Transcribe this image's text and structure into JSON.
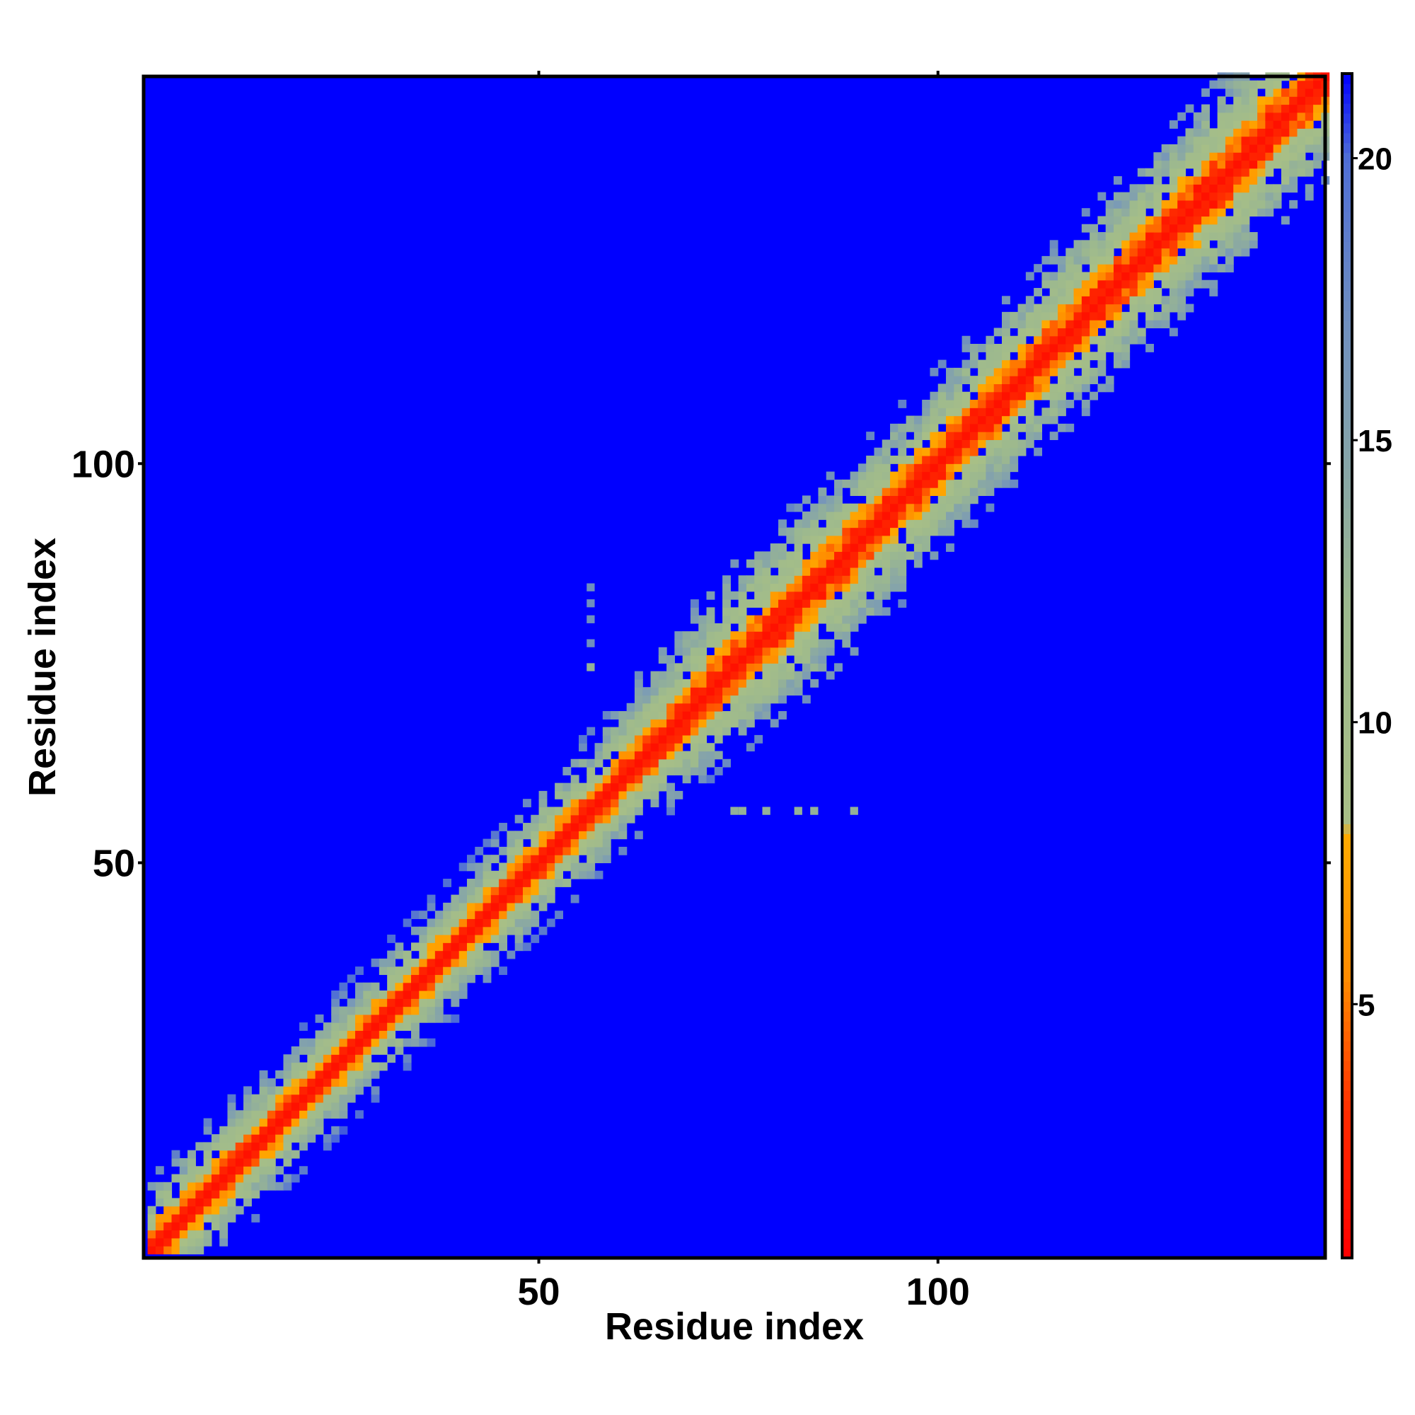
{
  "chart_data": {
    "type": "heatmap",
    "title": "",
    "xlabel": "Residue index",
    "ylabel": "Residue index",
    "n_residues": 148,
    "xlim": [
      1,
      148
    ],
    "ylim": [
      1,
      148
    ],
    "x_ticks": [
      50,
      100
    ],
    "y_ticks": [
      50,
      100
    ],
    "colorbar": {
      "ticks": [
        5,
        10,
        15,
        20
      ],
      "range": [
        0.5,
        21.5
      ],
      "stops": [
        {
          "value": 0.5,
          "color": "#ff0000"
        },
        {
          "value": 3.0,
          "color": "#ff2a00"
        },
        {
          "value": 5.5,
          "color": "#ff8c00"
        },
        {
          "value": 8.0,
          "color": "#ffaa00"
        },
        {
          "value": 8.2,
          "color": "#a8bf86"
        },
        {
          "value": 12.0,
          "color": "#9db98e"
        },
        {
          "value": 16.0,
          "color": "#7a9ab6"
        },
        {
          "value": 20.0,
          "color": "#4f6ed6"
        },
        {
          "value": 21.5,
          "color": "#0000ff"
        }
      ]
    },
    "colors": {
      "background": "#0000ff",
      "contact_core": "#ff0000",
      "contact_near": "#ff8c00",
      "mid_range": "#9db98e",
      "far_range": "#6f8fbf"
    },
    "band_profile": {
      "description_of_values": "distance value as function of |i-j| offset from the diagonal",
      "offsets": [
        0,
        1,
        2,
        3,
        4,
        5,
        6,
        8,
        10,
        12
      ],
      "values": [
        1.5,
        2.5,
        4.5,
        7.0,
        9.5,
        10.5,
        12.0,
        14.5,
        17.5,
        21.5
      ]
    },
    "band_halfwidth_by_position": [
      {
        "at": 1,
        "halfwidth": 8
      },
      {
        "at": 20,
        "halfwidth": 7
      },
      {
        "at": 40,
        "halfwidth": 7
      },
      {
        "at": 60,
        "halfwidth": 8
      },
      {
        "at": 80,
        "halfwidth": 12
      },
      {
        "at": 100,
        "halfwidth": 10
      },
      {
        "at": 120,
        "halfwidth": 11
      },
      {
        "at": 140,
        "halfwidth": 12
      },
      {
        "at": 148,
        "halfwidth": 10
      }
    ],
    "isolated_contacts": [
      {
        "i": 56,
        "j": 84,
        "value": 17
      },
      {
        "i": 56,
        "j": 82,
        "value": 17
      },
      {
        "i": 56,
        "j": 80,
        "value": 17
      },
      {
        "i": 56,
        "j": 77,
        "value": 17
      },
      {
        "i": 56,
        "j": 74,
        "value": 13
      },
      {
        "i": 74,
        "j": 56,
        "value": 13
      },
      {
        "i": 75,
        "j": 56,
        "value": 13
      },
      {
        "i": 78,
        "j": 56,
        "value": 13
      },
      {
        "i": 82,
        "j": 56,
        "value": 13
      },
      {
        "i": 84,
        "j": 56,
        "value": 13
      },
      {
        "i": 89,
        "j": 56,
        "value": 13
      }
    ]
  }
}
